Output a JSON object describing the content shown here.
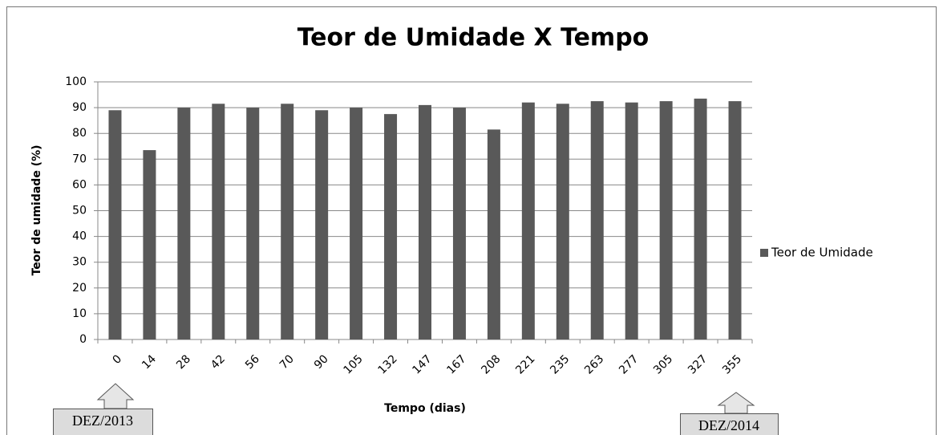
{
  "chart_data": {
    "type": "bar",
    "title": "Teor de Umidade  X  Tempo",
    "x_label": "Tempo (dias)",
    "y_label": "Teor de umidade (%)",
    "categories": [
      "0",
      "14",
      "28",
      "42",
      "56",
      "70",
      "90",
      "105",
      "132",
      "147",
      "167",
      "208",
      "221",
      "235",
      "263",
      "277",
      "305",
      "327",
      "355"
    ],
    "series": [
      {
        "name": "Teor de Umidade",
        "color": "#595959",
        "values": [
          89,
          73.5,
          90,
          91.5,
          90,
          91.5,
          89,
          90,
          87.5,
          91,
          90,
          81.5,
          92,
          91.5,
          92.5,
          92,
          92.5,
          93.5,
          92.5
        ]
      }
    ],
    "ylim": [
      0,
      100
    ],
    "yticks": [
      0,
      10,
      20,
      30,
      40,
      50,
      60,
      70,
      80,
      90,
      100
    ],
    "grid": true,
    "legend": "right",
    "annotations": [
      "DEZ/2013",
      "DEZ/2014"
    ]
  }
}
